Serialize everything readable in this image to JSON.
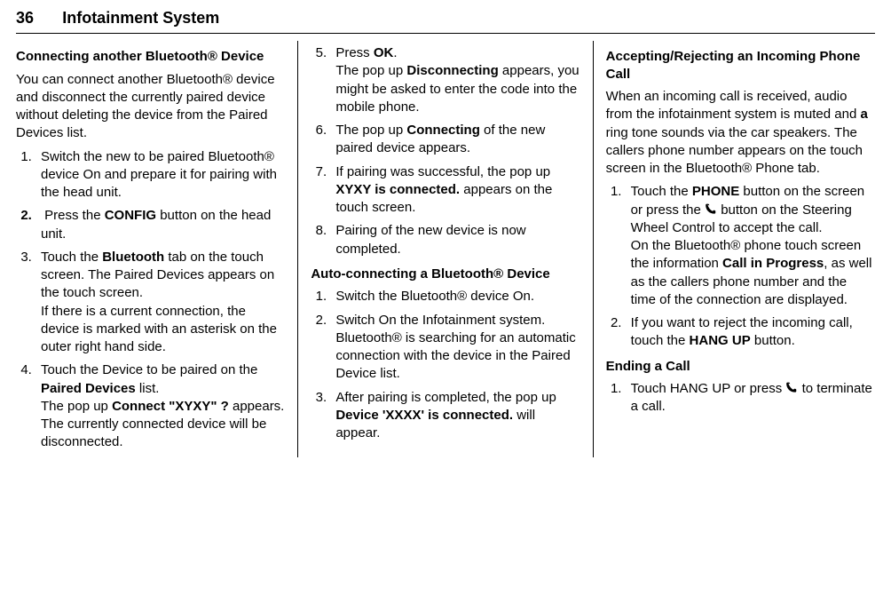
{
  "header": {
    "page_num": "36",
    "title": "Infotainment System"
  },
  "col1": {
    "h1": "Connecting another Bluetooth® Device",
    "p1": "You can connect another Bluetooth® device and disconnect the currently paired device without deleting the device from the Paired Devices list.",
    "li1": "Switch the new to be paired Bluetooth® device On and prepare it for pairing with the head unit.",
    "li2_a": "Press the ",
    "li2_b": "CONFIG",
    "li2_c": " button on the head unit.",
    "li3_a": "Touch the ",
    "li3_b": "Bluetooth",
    "li3_c": " tab on the touch screen. The Paired Devices appears on the touch screen.",
    "li3_d": "If there is a current connection, the device is marked with an asterisk on the outer right hand side.",
    "li4_a": "Touch the Device to be paired on the ",
    "li4_b": "Paired Devices",
    "li4_c": " list.",
    "li4_d": "The pop up ",
    "li4_e": "Connect \"XYXY\" ?",
    "li4_f": " appears.",
    "li4_g": "The currently connected device will be disconnected."
  },
  "col2": {
    "li5_a": "Press ",
    "li5_b": "OK",
    "li5_c": ".",
    "li5_d": "The pop up ",
    "li5_e": "Disconnecting",
    "li5_f": " appears, you might be asked to enter the code into the mobile phone.",
    "li6_a": "The pop up ",
    "li6_b": "Connecting",
    "li6_c": " of the new paired device appears.",
    "li7_a": "If pairing was successful, the pop up ",
    "li7_b": "XYXY is connected.",
    "li7_c": " appears on the touch screen.",
    "li8": "Pairing of the new device is now completed.",
    "h2": "Auto-connecting a Bluetooth® Device",
    "b_li1": "Switch the Bluetooth® device On.",
    "b_li2": "Switch On the Infotainment system. Bluetooth® is searching for an automatic connection with the device in the Paired Device list.",
    "b_li3_a": "After pairing is completed, the pop up ",
    "b_li3_b": "Device 'XXXX' is connected.",
    "b_li3_c": " will appear."
  },
  "col3": {
    "h1": "Accepting/Rejecting an Incoming Phone Call",
    "p1_a": "When an incoming call is received, audio from the infotainment system is muted and ",
    "p1_b": "a",
    "p1_c": " ring tone sounds via the car speakers. The callers phone number appears on the touch screen in the  Bluetooth® Phone tab.",
    "li1_a": "Touch the ",
    "li1_b": "PHONE",
    "li1_c": " button on the screen or press the ",
    "li1_d": " button on the Steering Wheel Control to accept the call.",
    "li1_e": "On the Bluetooth® phone touch screen the information ",
    "li1_f": "Call in Progress",
    "li1_g": ", as well as the callers phone number and the time of the connection are displayed.",
    "li2_a": "If you want to reject the incoming call, touch the ",
    "li2_b": "HANG UP",
    "li2_c": " button.",
    "h2": "Ending a Call",
    "c_li1_a": "Touch HANG UP or press ",
    "c_li1_b": " to terminate a call."
  }
}
